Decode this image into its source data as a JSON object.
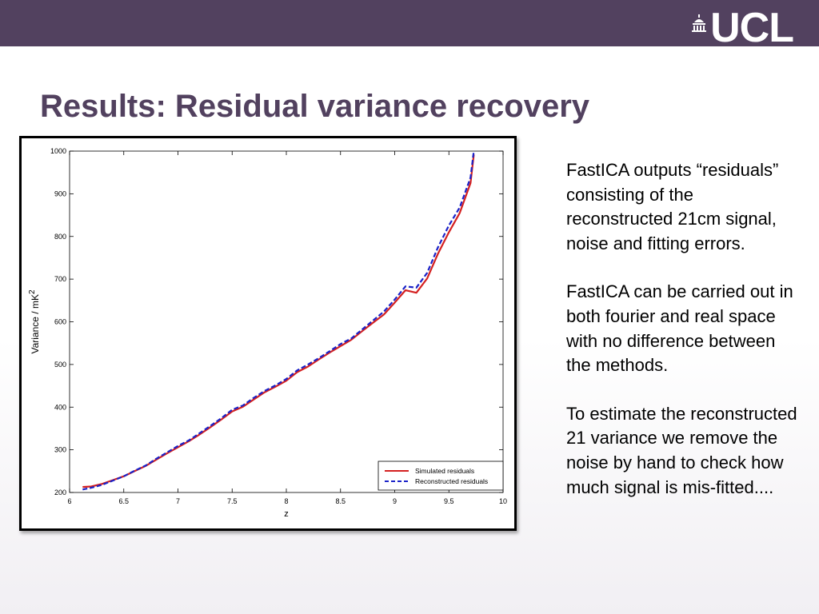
{
  "header": {
    "logo_text": "UCL",
    "bar_color": "#52415f"
  },
  "slide": {
    "title": "Results: Residual variance recovery"
  },
  "side_text": [
    "FastICA outputs “residuals” consisting of the reconstructed 21cm signal, noise and fitting errors.",
    "FastICA can be carried out in both fourier and real space with no difference between the methods.",
    "To estimate the reconstructed 21 variance we remove the noise by hand to check how much signal is mis-fitted...."
  ],
  "chart_data": {
    "type": "line",
    "xlabel": "z",
    "ylabel": "Variance / mK",
    "ylabel_superscript": "2",
    "xlim": [
      6,
      10
    ],
    "ylim": [
      200,
      1000
    ],
    "xticks": [
      "6",
      "6.5",
      "7",
      "7.5",
      "8",
      "8.5",
      "9",
      "9.5",
      "10"
    ],
    "yticks": [
      "200",
      "300",
      "400",
      "500",
      "600",
      "700",
      "800",
      "900",
      "1000"
    ],
    "grid": false,
    "legend_position": "bottom-right",
    "x": [
      6.12,
      6.2,
      6.3,
      6.4,
      6.5,
      6.6,
      6.7,
      6.8,
      6.9,
      7.0,
      7.1,
      7.2,
      7.3,
      7.4,
      7.5,
      7.6,
      7.7,
      7.8,
      7.9,
      8.0,
      8.1,
      8.2,
      8.3,
      8.4,
      8.5,
      8.6,
      8.7,
      8.8,
      8.9,
      9.0,
      9.1,
      9.2,
      9.3,
      9.4,
      9.5,
      9.6,
      9.7,
      9.73
    ],
    "series": [
      {
        "name": "Simulated residuals",
        "color": "#d42020",
        "dash": "solid",
        "values": [
          213,
          214,
          220,
          229,
          238,
          250,
          262,
          277,
          292,
          306,
          320,
          336,
          353,
          371,
          390,
          401,
          418,
          435,
          448,
          462,
          482,
          495,
          512,
          528,
          543,
          558,
          578,
          598,
          617,
          645,
          674,
          668,
          702,
          760,
          810,
          855,
          925,
          992
        ]
      },
      {
        "name": "Reconstructed residuals",
        "color": "#1a22c8",
        "dash": "dashed",
        "values": [
          207,
          211,
          218,
          228,
          238,
          251,
          263,
          279,
          294,
          309,
          322,
          339,
          356,
          374,
          394,
          404,
          422,
          438,
          451,
          466,
          486,
          500,
          515,
          531,
          548,
          561,
          582,
          603,
          624,
          652,
          683,
          680,
          715,
          775,
          826,
          868,
          938,
          1000
        ]
      }
    ]
  }
}
